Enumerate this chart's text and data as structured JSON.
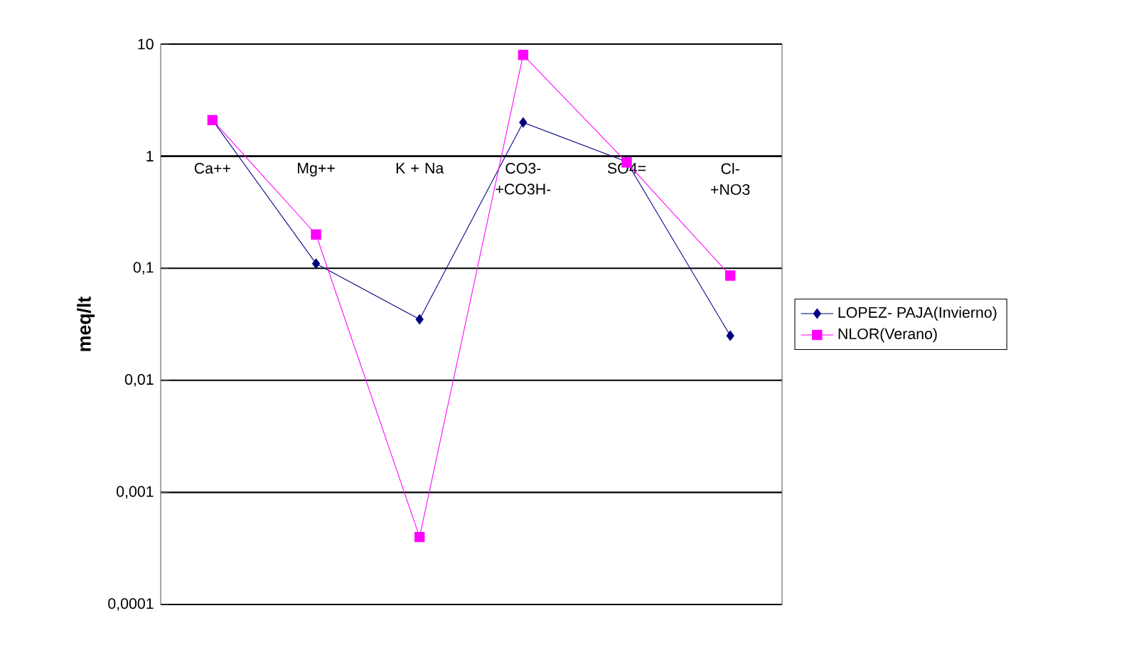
{
  "chart_data": {
    "type": "line",
    "ylabel": "meq/lt",
    "categories": [
      "Ca++",
      "Mg++",
      "K + Na",
      "CO3- +CO3H-",
      "SO4=",
      "Cl- +NO3"
    ],
    "series": [
      {
        "name": "LOPEZ- PAJA(Invierno)",
        "color": "#000080",
        "marker": "diamond",
        "values": [
          2.1,
          0.11,
          0.035,
          2.0,
          0.89,
          0.025
        ]
      },
      {
        "name": "NLOR(Verano)",
        "color": "#ff00ff",
        "marker": "square",
        "values": [
          2.1,
          0.2,
          0.0004,
          8,
          0.88,
          0.086
        ]
      }
    ],
    "log": "y",
    "ylim": [
      0.0001,
      10
    ],
    "yticks": [
      {
        "value": 0.0001,
        "label": "0,0001"
      },
      {
        "value": 0.001,
        "label": "0,001"
      },
      {
        "value": 0.01,
        "label": "0,01"
      },
      {
        "value": 0.1,
        "label": "0,1"
      },
      1,
      10
    ],
    "grid": "y",
    "legend": "right",
    "line_style": "solid"
  }
}
